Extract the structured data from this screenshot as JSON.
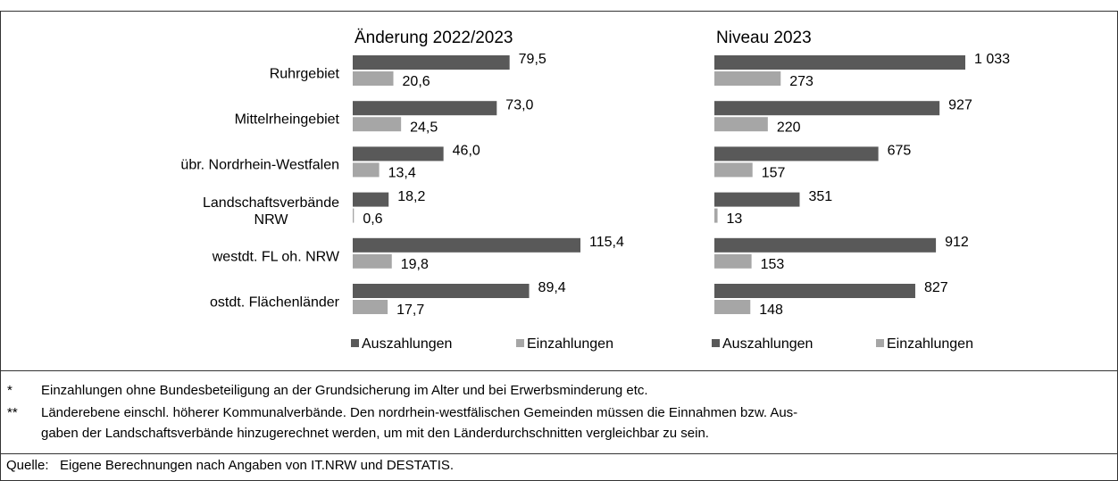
{
  "chart_data": {
    "type": "bar",
    "orientation": "horizontal",
    "categories": [
      "Ruhrgebiet",
      "Mittelrheingebiet",
      "übr. Nordrhein-Westfalen",
      "Landschaftsverbände\nNRW",
      "westdt. FL oh. NRW",
      "ostdt. Flächenländer"
    ],
    "panels": [
      {
        "title": "Änderung 2022/2023",
        "series": [
          {
            "name": "Auszahlungen",
            "color": "#595959",
            "values": [
              79.5,
              73.0,
              46.0,
              18.2,
              115.4,
              89.4
            ],
            "value_labels": [
              "79,5",
              "73,0",
              "46,0",
              "18,2",
              "115,4",
              "89,4"
            ]
          },
          {
            "name": "Einzahlungen",
            "color": "#a6a6a6",
            "values": [
              20.6,
              24.5,
              13.4,
              0.6,
              19.8,
              17.7
            ],
            "value_labels": [
              "20,6",
              "24,5",
              "13,4",
              "0,6",
              "19,8",
              "17,7"
            ]
          }
        ]
      },
      {
        "title": "Niveau 2023",
        "series": [
          {
            "name": "Auszahlungen",
            "color": "#595959",
            "values": [
              1033,
              927,
              675,
              351,
              912,
              827
            ],
            "value_labels": [
              "1 033",
              "927",
              "675",
              "351",
              "912",
              "827"
            ]
          },
          {
            "name": "Einzahlungen",
            "color": "#a6a6a6",
            "values": [
              273,
              220,
              157,
              13,
              153,
              148
            ],
            "value_labels": [
              "273",
              "220",
              "157",
              "13",
              "153",
              "148"
            ]
          }
        ]
      }
    ]
  },
  "notes": [
    {
      "marker": "*",
      "text": "Einzahlungen ohne Bundesbeteiligung an der Grundsicherung im Alter und bei Erwerbsminderung etc."
    },
    {
      "marker": "**",
      "text": "Länderebene einschl. höherer Kommunalverbände. Den nordrhein-westfälischen Gemeinden müssen die Einnahmen bzw. Aus-\ngaben der Landschaftsverbände hinzugerechnet werden, um mit den Länderdurchschnitten vergleichbar zu sein."
    }
  ],
  "source": {
    "label": "Quelle:",
    "text": "Eigene Berechnungen nach Angaben von IT.NRW und DESTATIS."
  }
}
